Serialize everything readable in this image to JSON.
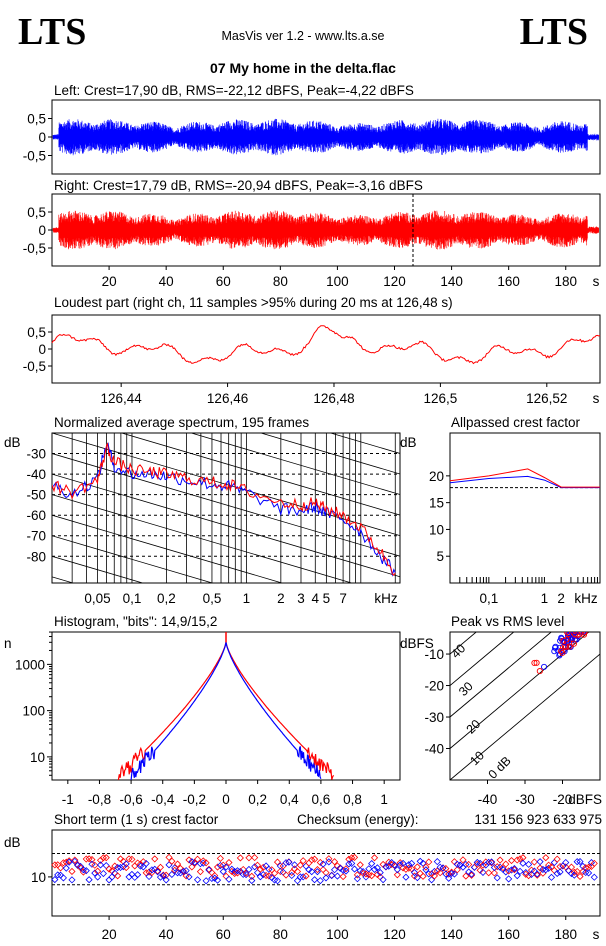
{
  "header": {
    "logo_left": "LTS",
    "logo_right": "LTS",
    "app_title": "MasVis ver 1.2 - www.lts.a.se",
    "file_title": "07 My home in the delta.flac"
  },
  "colors": {
    "left": "#0000ff",
    "right": "#ff0000",
    "grid": "#000000"
  },
  "chart_data": [
    {
      "id": "left_waveform",
      "type": "area",
      "title": "Left: Crest=17,90 dB, RMS=-22,12 dBFS, Peak=-4,22 dBFS",
      "yticks": [
        "0,5",
        "0",
        "-0,5"
      ],
      "ylim": [
        -1,
        1
      ],
      "xlim": [
        0,
        192
      ],
      "color": "#0000ff",
      "envelope_peak": 0.62
    },
    {
      "id": "right_waveform",
      "type": "area",
      "title": "Right: Crest=17,79 dB, RMS=-20,94 dBFS, Peak=-3,16 dBFS",
      "yticks": [
        "0,5",
        "0",
        "-0,5"
      ],
      "ylim": [
        -1,
        1
      ],
      "xlim": [
        0,
        192
      ],
      "color": "#ff0000",
      "envelope_peak": 0.69,
      "marker_x": 126.48,
      "xticks": [
        "20",
        "40",
        "60",
        "80",
        "100",
        "120",
        "140",
        "160",
        "180",
        "s"
      ]
    },
    {
      "id": "loudest_part",
      "type": "line",
      "title": "Loudest part (right ch, 11 samples >95% during 20 ms at 126,48 s)",
      "yticks": [
        "0,5",
        "0",
        "-0,5"
      ],
      "ylim": [
        -1,
        1
      ],
      "xlim": [
        126.427,
        126.53
      ],
      "color": "#ff0000",
      "xticks": [
        "126,44",
        "126,46",
        "126,48",
        "126,5",
        "126,52",
        "s"
      ]
    },
    {
      "id": "spectrum",
      "type": "line",
      "title": "Normalized average spectrum, 195 frames",
      "ylabel": "dB",
      "yticks": [
        "-30",
        "-40",
        "-50",
        "-60",
        "-70",
        "-80"
      ],
      "xticks": [
        "0,05",
        "0,1",
        "0,2",
        "0,5",
        "1",
        "2",
        "3",
        "4",
        "5",
        "7",
        "kHz"
      ],
      "xlim_khz": [
        0.02,
        22
      ],
      "ylim": [
        -93,
        -20
      ],
      "series": [
        {
          "color": "#0000ff",
          "points": [
            [
              0.02,
              -45
            ],
            [
              0.03,
              -50
            ],
            [
              0.05,
              -42
            ],
            [
              0.06,
              -25
            ],
            [
              0.07,
              -36
            ],
            [
              0.1,
              -40
            ],
            [
              0.15,
              -40
            ],
            [
              0.2,
              -41
            ],
            [
              0.3,
              -43
            ],
            [
              0.5,
              -45
            ],
            [
              0.7,
              -46
            ],
            [
              1,
              -49
            ],
            [
              2,
              -57
            ],
            [
              3,
              -58
            ],
            [
              4,
              -56
            ],
            [
              5,
              -59
            ],
            [
              7,
              -62
            ],
            [
              10,
              -68
            ],
            [
              15,
              -80
            ],
            [
              20,
              -88
            ]
          ]
        },
        {
          "color": "#ff0000",
          "points": [
            [
              0.02,
              -45
            ],
            [
              0.03,
              -49
            ],
            [
              0.05,
              -43
            ],
            [
              0.06,
              -27
            ],
            [
              0.07,
              -34
            ],
            [
              0.1,
              -38
            ],
            [
              0.15,
              -39
            ],
            [
              0.2,
              -40
            ],
            [
              0.3,
              -42
            ],
            [
              0.5,
              -44
            ],
            [
              0.7,
              -45
            ],
            [
              1,
              -48
            ],
            [
              2,
              -54
            ],
            [
              3,
              -55
            ],
            [
              4,
              -54
            ],
            [
              5,
              -57
            ],
            [
              7,
              -60
            ],
            [
              10,
              -66
            ],
            [
              15,
              -78
            ],
            [
              20,
              -88
            ]
          ]
        }
      ]
    },
    {
      "id": "allpassed_crest",
      "type": "line",
      "title": "Allpassed crest factor",
      "ylabel": "dB",
      "yticks": [
        "20",
        "15",
        "10",
        "5"
      ],
      "xticks": [
        "0,1",
        "1",
        "2",
        "kHz"
      ],
      "ylim": [
        0,
        28
      ],
      "reference": 17.8,
      "series": [
        {
          "color": "#0000ff",
          "points": [
            [
              0.02,
              18.7
            ],
            [
              0.1,
              19.5
            ],
            [
              0.5,
              19.9
            ],
            [
              1,
              19.2
            ],
            [
              2,
              17.8
            ],
            [
              10,
              17.8
            ]
          ]
        },
        {
          "color": "#ff0000",
          "points": [
            [
              0.02,
              19.1
            ],
            [
              0.1,
              20
            ],
            [
              0.5,
              21.3
            ],
            [
              1,
              19.7
            ],
            [
              2,
              17.9
            ],
            [
              10,
              17.9
            ]
          ]
        }
      ]
    },
    {
      "id": "histogram",
      "type": "line",
      "title": "Histogram, \"bits\": 14,9/15,2",
      "ylabel": "n",
      "yticks": [
        "1000",
        "100",
        "10"
      ],
      "xticks": [
        "-1",
        "-0,8",
        "-0,6",
        "-0,4",
        "-0,2",
        "0",
        "0,2",
        "0,4",
        "0,6",
        "0,8",
        "1"
      ],
      "xlim": [
        -1.1,
        1.1
      ],
      "ylim_log": [
        0.5,
        3.7
      ],
      "peak_count": 3000,
      "series": [
        {
          "color": "#ff0000",
          "halfwidth": 0.68
        },
        {
          "color": "#0000ff",
          "halfwidth": 0.6
        }
      ]
    },
    {
      "id": "peak_vs_rms",
      "type": "scatter",
      "title": "Peak vs RMS level",
      "ylabel": "dBFS",
      "xlabel": "dBFS",
      "yticks": [
        "-10",
        "-20",
        "-30",
        "-40"
      ],
      "xticks": [
        "-40",
        "-30",
        "-20"
      ],
      "diag_labels": [
        "40",
        "30",
        "20",
        "10",
        "0 dB"
      ],
      "xlim": [
        -50,
        -10
      ],
      "ylim": [
        -50,
        -3
      ]
    },
    {
      "id": "short_term_crest",
      "type": "scatter",
      "title": "Short term (1 s) crest factor",
      "checksum_label": "Checksum (energy):",
      "checksum_value": "131 156 923 633 975",
      "ylabel": "dB",
      "yticks": [
        "10"
      ],
      "xticks": [
        "20",
        "40",
        "60",
        "80",
        "100",
        "120",
        "140",
        "160",
        "180",
        "s"
      ],
      "xlim": [
        0,
        192
      ],
      "ylim": [
        0,
        22
      ],
      "ref_lines": [
        8,
        16
      ]
    }
  ]
}
